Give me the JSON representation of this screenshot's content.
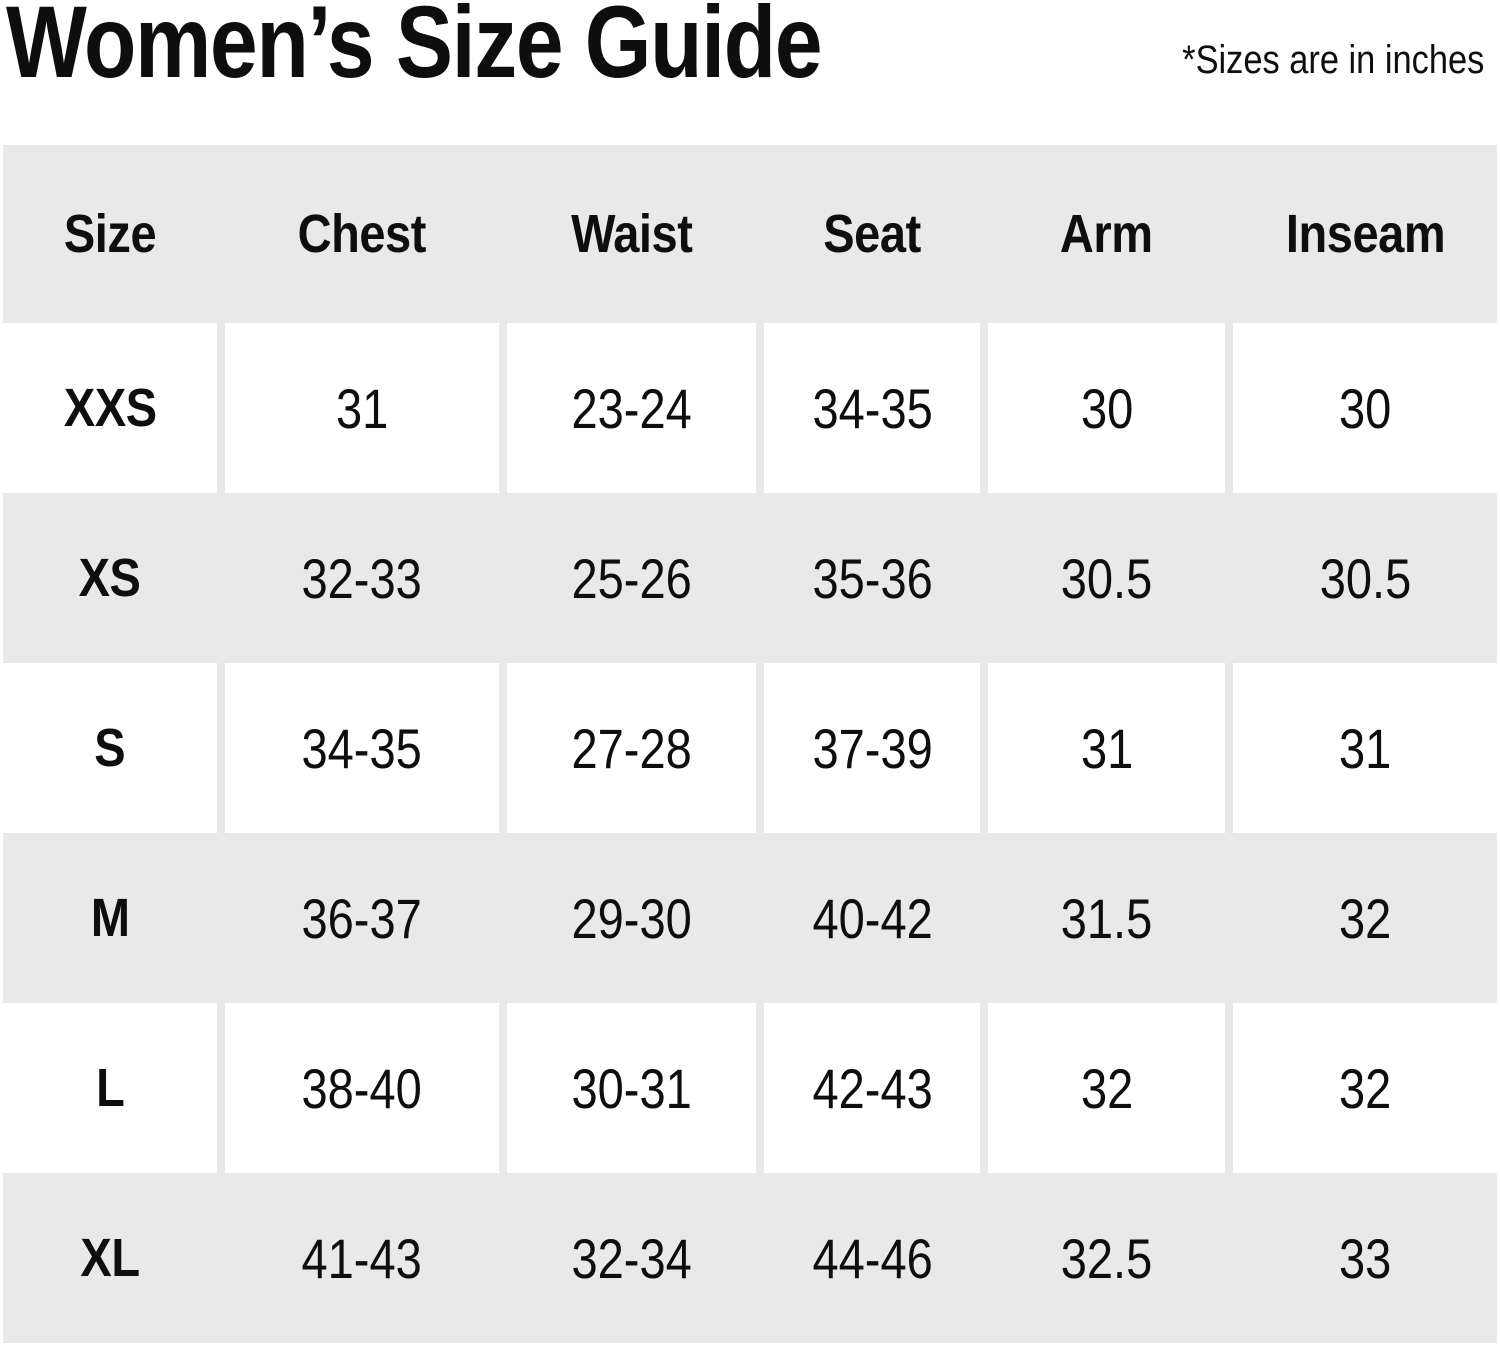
{
  "header": {
    "title": "Women’s Size Guide",
    "note": "*Sizes are in inches"
  },
  "chart_data": {
    "type": "table",
    "title": "Women’s Size Guide",
    "units": "inches",
    "columns": [
      "Size",
      "Chest",
      "Waist",
      "Seat",
      "Arm",
      "Inseam"
    ],
    "rows": [
      [
        "XXS",
        "31",
        "23-24",
        "34-35",
        "30",
        "30"
      ],
      [
        "XS",
        "32-33",
        "25-26",
        "35-36",
        "30.5",
        "30.5"
      ],
      [
        "S",
        "34-35",
        "27-28",
        "37-39",
        "31",
        "31"
      ],
      [
        "M",
        "36-37",
        "29-30",
        "40-42",
        "31.5",
        "32"
      ],
      [
        "L",
        "38-40",
        "30-31",
        "42-43",
        "32",
        "32"
      ],
      [
        "XL",
        "41-43",
        "32-34",
        "44-46",
        "32.5",
        "33"
      ]
    ],
    "layout": {
      "striping": "header gray, then alternating white/gray rows starting white",
      "row_band_color": "#e9e9e9",
      "white_cell_color": "#ffffff",
      "text_color": "#0e0e0e"
    }
  }
}
